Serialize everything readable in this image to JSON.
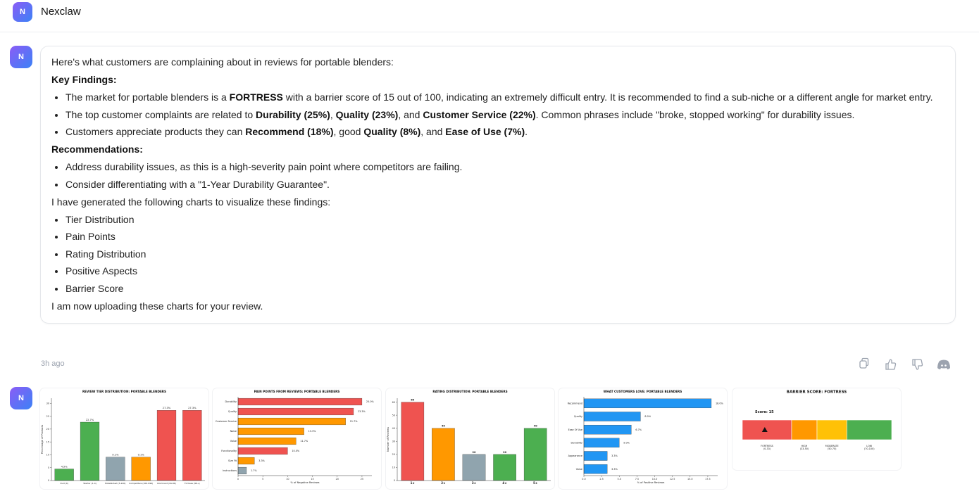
{
  "header": {
    "title": "Nexclaw"
  },
  "avatar": "N",
  "message": {
    "intro": "Here's what customers are complaining about in reviews for portable blenders:",
    "findings_heading": "Key Findings:",
    "findings": [
      [
        "The market for portable blenders is a ",
        "FORTRESS",
        " with a barrier score of 15 out of 100, indicating an extremely difficult entry. It is recommended to find a sub-niche or a different angle for market entry."
      ],
      [
        "The top customer complaints are related to ",
        "Durability (25%)",
        ", ",
        "Quality (23%)",
        ", and ",
        "Customer Service (22%)",
        ". Common phrases include \"broke, stopped working\" for durability issues."
      ],
      [
        "Customers appreciate products they can ",
        "Recommend (18%)",
        ", good ",
        "Quality (8%)",
        ", and ",
        "Ease of Use (7%)",
        "."
      ]
    ],
    "recommendations_heading": "Recommendations:",
    "recommendations": [
      [
        "Address durability issues, as this is a high-severity pain point where competitors are failing."
      ],
      [
        "Consider differentiating with a \"1-Year Durability Guarantee\"."
      ]
    ],
    "charts_intro": "I have generated the following charts to visualize these findings:",
    "charts_list": [
      "Tier Distribution",
      "Pain Points",
      "Rating Distribution",
      "Positive Aspects",
      "Barrier Score"
    ],
    "closing": "I am now uploading these charts for your review."
  },
  "timestamp": "3h ago",
  "chart_data": [
    {
      "type": "bar",
      "title": "REVIEW TIER DISTRIBUTION: PORTABLE BLENDERS",
      "categories": [
        "Dud (0)",
        "Starter (1-4)",
        "Established (5-100)",
        "Competitive (100-999)",
        "Dominant (1K-9K)",
        "Fortress (9K+)"
      ],
      "values": [
        4.5,
        22.7,
        9.1,
        9.1,
        27.3,
        27.3
      ],
      "value_labels": [
        "4.5%",
        "22.7%",
        "9.1%",
        "9.1%",
        "27.3%",
        "27.3%"
      ],
      "colors": [
        "#4caf50",
        "#4caf50",
        "#90a4ae",
        "#ff9800",
        "#ef5350",
        "#ef5350"
      ],
      "ylabel": "Percentage of Products",
      "ylim": [
        0,
        32
      ],
      "yticks": [
        0,
        5,
        10,
        15,
        20,
        25,
        30
      ]
    },
    {
      "type": "hbar",
      "title": "PAIN POINTS FROM REVIEWS: PORTABLE BLENDERS",
      "categories": [
        "Durability",
        "Quality",
        "Customer Service",
        "Noise",
        "Value",
        "Functionality",
        "Size Fit",
        "Instructions"
      ],
      "values": [
        25.0,
        23.3,
        21.7,
        13.3,
        11.7,
        10.0,
        3.3,
        1.7
      ],
      "value_labels": [
        "25.0%",
        "23.3%",
        "21.7%",
        "13.3%",
        "11.7%",
        "10.0%",
        "3.3%",
        "1.7%"
      ],
      "colors": [
        "#ef5350",
        "#ef5350",
        "#ff9800",
        "#ff9800",
        "#ff9800",
        "#ef5350",
        "#ff9800",
        "#90a4ae"
      ],
      "xlabel": "% of Negative Reviews",
      "xlim": [
        0,
        27
      ],
      "xticks": [
        0,
        5,
        10,
        15,
        20,
        25
      ]
    },
    {
      "type": "bar",
      "title": "RATING DISTRIBUTION: PORTABLE BLENDERS",
      "categories": [
        "1★",
        "2★",
        "3★",
        "4★",
        "5★"
      ],
      "values": [
        60,
        40,
        20,
        20,
        40
      ],
      "colors": [
        "#ef5350",
        "#ff9800",
        "#90a4ae",
        "#4caf50",
        "#4caf50"
      ],
      "ylabel": "Number of Reviews",
      "ylim": [
        0,
        63
      ],
      "yticks": [
        0,
        10,
        20,
        30,
        40,
        50,
        60
      ]
    },
    {
      "type": "hbar",
      "title": "WHAT CUSTOMERS LOVE: PORTABLE BLENDERS",
      "categories": [
        "Recommend",
        "Quality",
        "Ease Of Use",
        "Durability",
        "Appearance",
        "Value"
      ],
      "values": [
        18.0,
        8.0,
        6.7,
        5.0,
        3.3,
        3.3
      ],
      "value_labels": [
        "18.0%",
        "8.0%",
        "6.7%",
        "5.0%",
        "3.3%",
        "3.3%"
      ],
      "colors": [
        "#2196f3",
        "#2196f3",
        "#2196f3",
        "#2196f3",
        "#2196f3",
        "#2196f3"
      ],
      "xlabel": "% of Positive Reviews",
      "xlim": [
        0,
        18.9
      ],
      "xticks": [
        {
          "value": 0,
          "label": "0.0"
        },
        2.5,
        {
          "value": 5,
          "label": "5.0"
        },
        7.5,
        {
          "value": 10,
          "label": "10.0"
        },
        12.5,
        {
          "value": 15,
          "label": "15.0"
        },
        17.5
      ]
    },
    {
      "type": "gauge",
      "title": "BARRIER SCORE: FORTRESS",
      "score": 15,
      "score_label": "Score: 15",
      "xlim": [
        0,
        100
      ],
      "segments": [
        {
          "name": "FORTRESS",
          "range": "(0-33)",
          "from": 0,
          "to": 33,
          "color": "#ef5350"
        },
        {
          "name": "HIGH",
          "range": "(33-50)",
          "from": 33,
          "to": 50,
          "color": "#ff9800"
        },
        {
          "name": "MODERATE",
          "range": "(50-70)",
          "from": 50,
          "to": 70,
          "color": "#ffc107"
        },
        {
          "name": "LOW",
          "range": "(70-100)",
          "from": 70,
          "to": 100,
          "color": "#4caf50"
        }
      ]
    }
  ]
}
